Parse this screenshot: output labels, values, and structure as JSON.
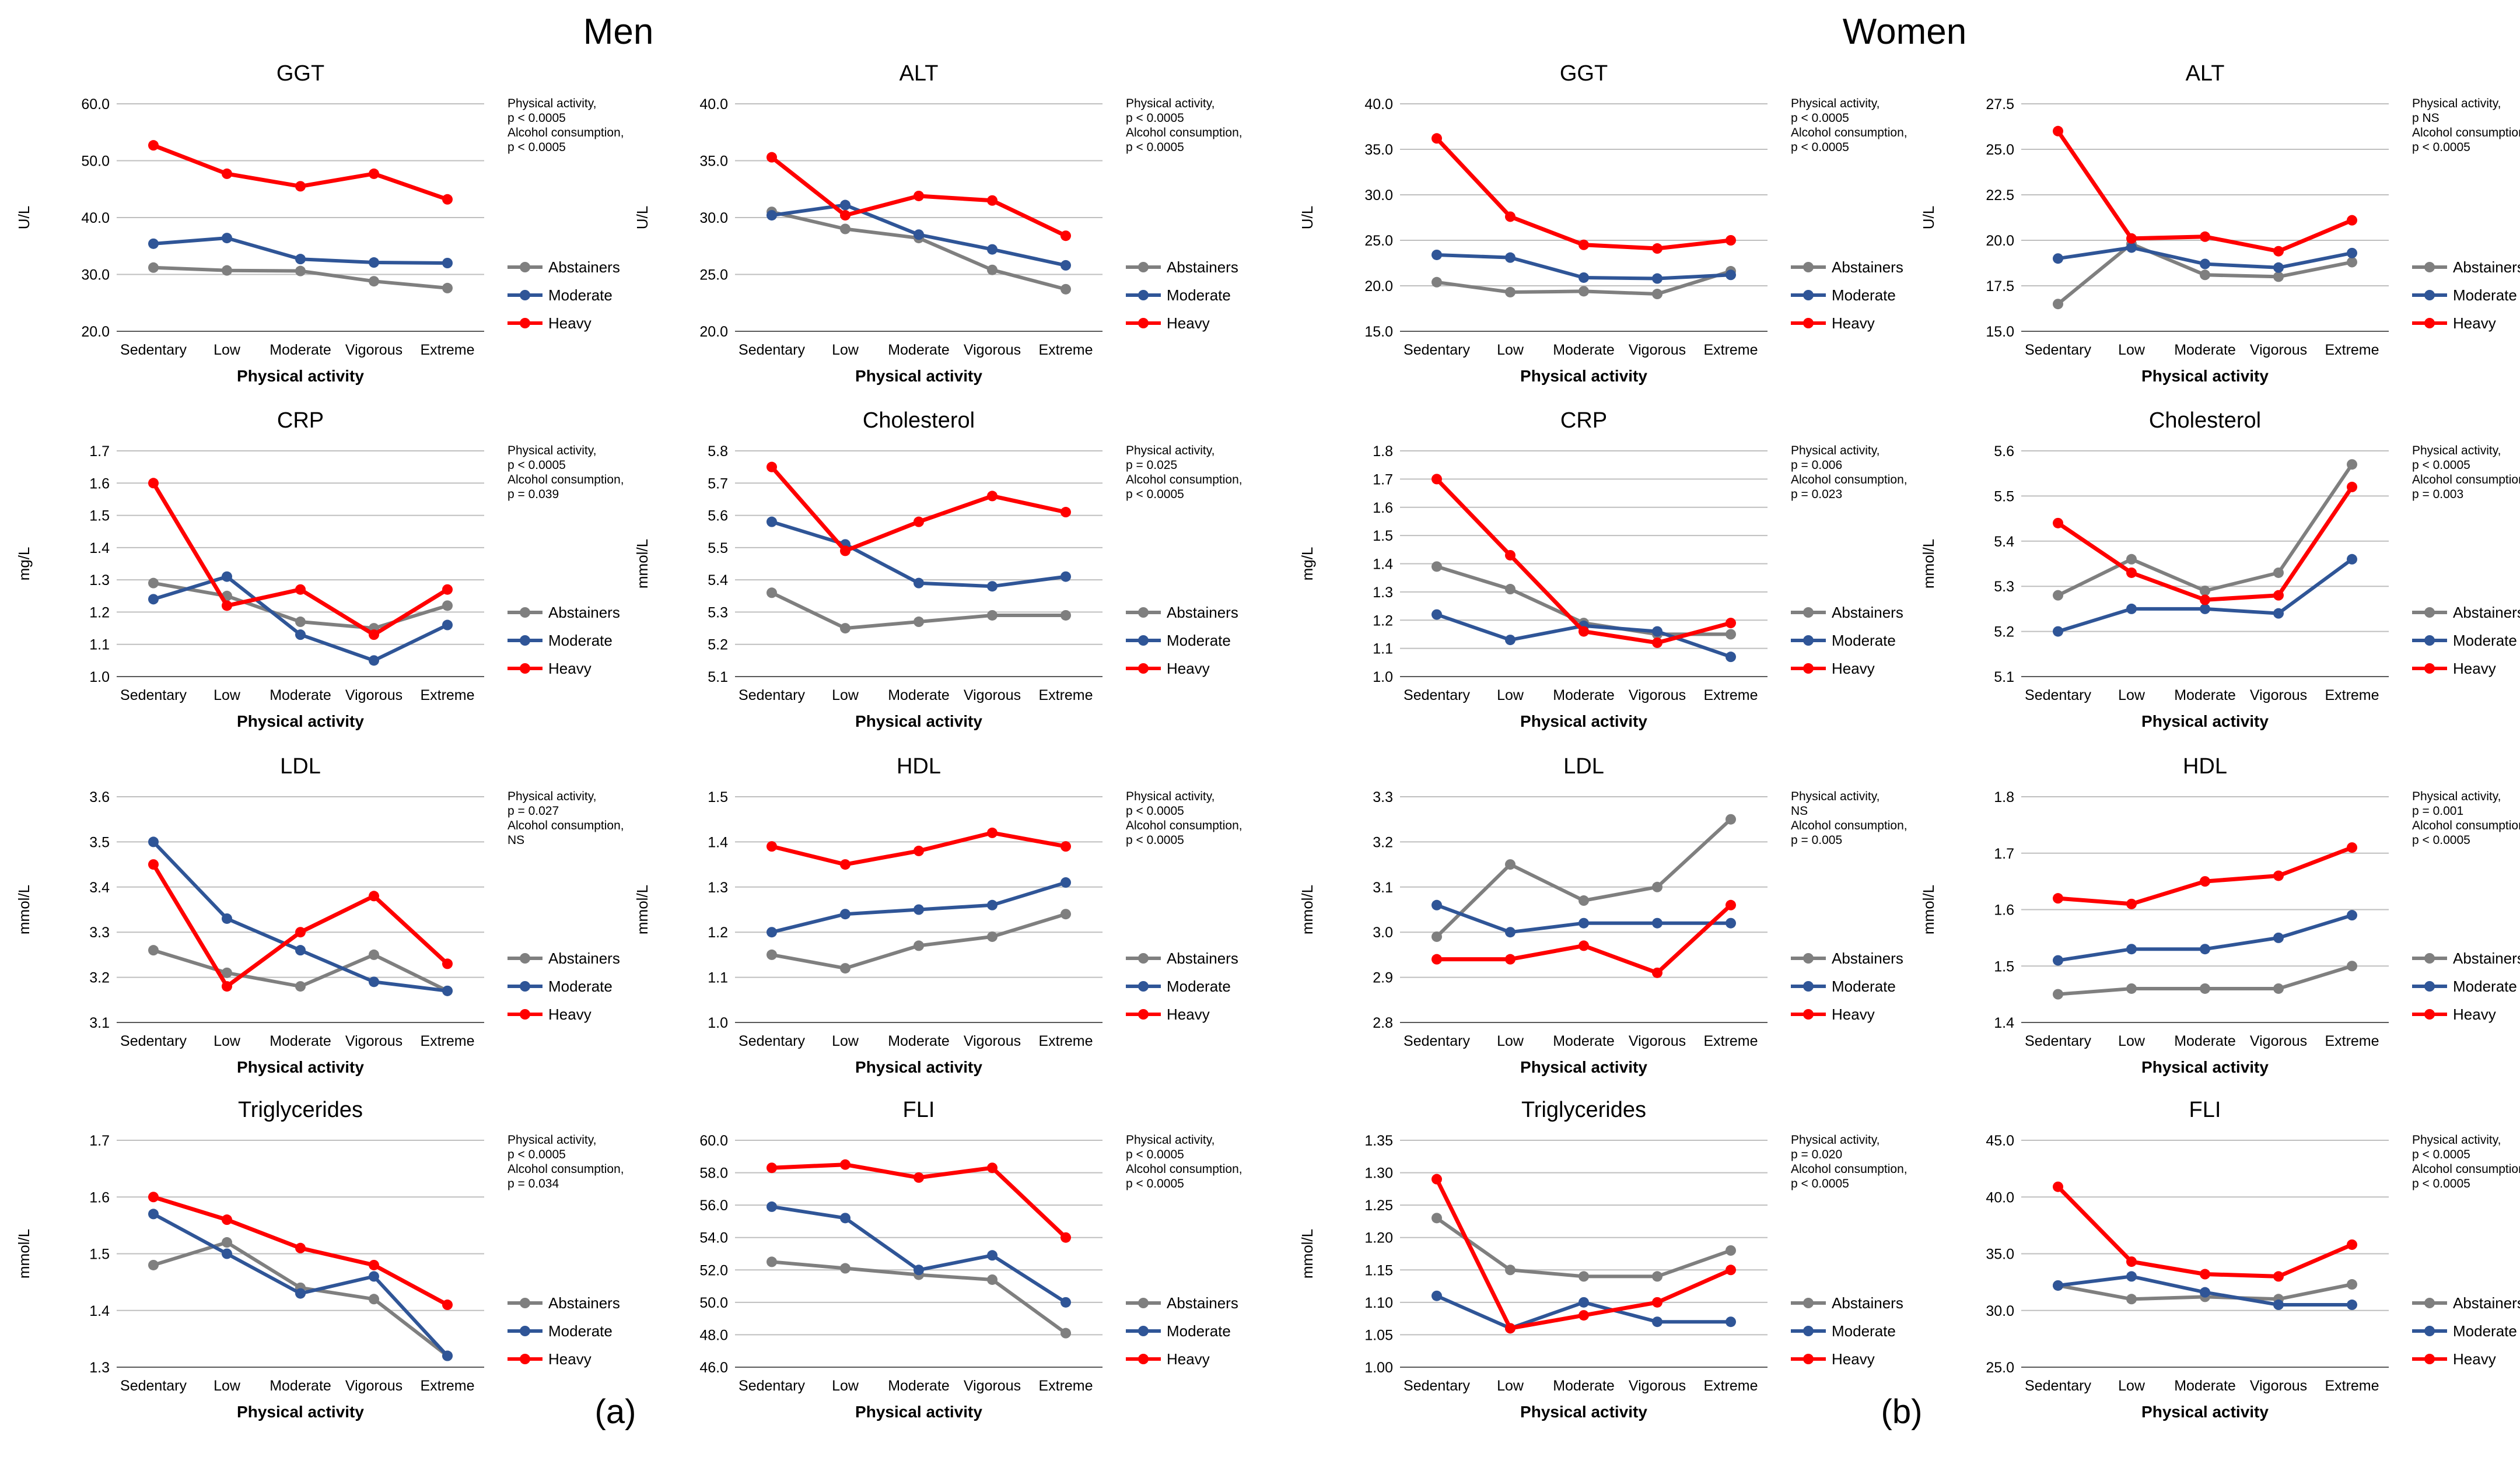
{
  "figure": {
    "men_title": "Men",
    "women_title": "Women",
    "label_a": "(a)",
    "label_b": "(b)"
  },
  "shared": {
    "categories": [
      "Sedentary",
      "Low",
      "Moderate",
      "Vigorous",
      "Extreme"
    ],
    "xlabel": "Physical activity",
    "legend": [
      "Abstainers",
      "Moderate",
      "Heavy"
    ],
    "colors": {
      "Abstainers": "#7f7f7f",
      "Moderate": "#2f5597",
      "Heavy": "#ff0000",
      "grid": "#bfbfbf",
      "axis": "#595959"
    }
  },
  "chart_data": [
    {
      "group": "Men",
      "type": "line",
      "title": "GGT",
      "ylabel": "U/L",
      "ylim": [
        20,
        60
      ],
      "yticks": [
        "20.0",
        "30.0",
        "40.0",
        "50.0",
        "60.0"
      ],
      "stats": [
        "Physical activity,",
        "p < 0.0005",
        "Alcohol consumption,",
        "p < 0.0005"
      ],
      "xlabel": "Physical activity",
      "categories": [
        "Sedentary",
        "Low",
        "Moderate",
        "Vigorous",
        "Extreme"
      ],
      "series": [
        {
          "name": "Abstainers",
          "values": [
            31.2,
            30.7,
            30.6,
            28.8,
            27.6
          ]
        },
        {
          "name": "Moderate",
          "values": [
            35.4,
            36.4,
            32.7,
            32.1,
            32.0
          ]
        },
        {
          "name": "Heavy",
          "values": [
            52.7,
            47.7,
            45.5,
            47.7,
            43.2
          ]
        }
      ]
    },
    {
      "group": "Men",
      "type": "line",
      "title": "ALT",
      "ylabel": "U/L",
      "ylim": [
        20,
        40
      ],
      "yticks": [
        "20.0",
        "25.0",
        "30.0",
        "35.0",
        "40.0"
      ],
      "stats": [
        "Physical activity,",
        "p < 0.0005",
        "Alcohol consumption,",
        "p < 0.0005"
      ],
      "xlabel": "Physical activity",
      "categories": [
        "Sedentary",
        "Low",
        "Moderate",
        "Vigorous",
        "Extreme"
      ],
      "series": [
        {
          "name": "Abstainers",
          "values": [
            30.5,
            29.0,
            28.2,
            25.4,
            23.7
          ]
        },
        {
          "name": "Moderate",
          "values": [
            30.2,
            31.1,
            28.5,
            27.2,
            25.8
          ]
        },
        {
          "name": "Heavy",
          "values": [
            35.3,
            30.2,
            31.9,
            31.5,
            28.4
          ]
        }
      ]
    },
    {
      "group": "Women",
      "type": "line",
      "title": "GGT",
      "ylabel": "U/L",
      "ylim": [
        15,
        40
      ],
      "yticks": [
        "15.0",
        "20.0",
        "25.0",
        "30.0",
        "35.0",
        "40.0"
      ],
      "stats": [
        "Physical activity,",
        "p < 0.0005",
        "Alcohol consumption,",
        "p < 0.0005"
      ],
      "xlabel": "Physical activity",
      "categories": [
        "Sedentary",
        "Low",
        "Moderate",
        "Vigorous",
        "Extreme"
      ],
      "series": [
        {
          "name": "Abstainers",
          "values": [
            20.4,
            19.3,
            19.4,
            19.1,
            21.6
          ]
        },
        {
          "name": "Moderate",
          "values": [
            23.4,
            23.1,
            20.9,
            20.8,
            21.2
          ]
        },
        {
          "name": "Heavy",
          "values": [
            36.2,
            27.6,
            24.5,
            24.1,
            25.0
          ]
        }
      ]
    },
    {
      "group": "Women",
      "type": "line",
      "title": "ALT",
      "ylabel": "U/L",
      "ylim": [
        15,
        27.5
      ],
      "yticks": [
        "15.0",
        "17.5",
        "20.0",
        "22.5",
        "25.0",
        "27.5"
      ],
      "stats": [
        "Physical activity,",
        "p NS",
        "Alcohol consumption,",
        "p < 0.0005"
      ],
      "xlabel": "Physical activity",
      "categories": [
        "Sedentary",
        "Low",
        "Moderate",
        "Vigorous",
        "Extreme"
      ],
      "series": [
        {
          "name": "Abstainers",
          "values": [
            16.5,
            19.8,
            18.1,
            18.0,
            18.8
          ]
        },
        {
          "name": "Moderate",
          "values": [
            19.0,
            19.6,
            18.7,
            18.5,
            19.3
          ]
        },
        {
          "name": "Heavy",
          "values": [
            26.0,
            20.1,
            20.2,
            19.4,
            21.1
          ]
        }
      ]
    },
    {
      "group": "Men",
      "type": "line",
      "title": "CRP",
      "ylabel": "mg/L",
      "ylim": [
        1.0,
        1.7
      ],
      "yticks": [
        "1.0",
        "1.1",
        "1.2",
        "1.3",
        "1.4",
        "1.5",
        "1.6",
        "1.7"
      ],
      "stats": [
        "Physical activity,",
        "p < 0.0005",
        "Alcohol consumption,",
        "p = 0.039"
      ],
      "xlabel": "Physical activity",
      "categories": [
        "Sedentary",
        "Low",
        "Moderate",
        "Vigorous",
        "Extreme"
      ],
      "series": [
        {
          "name": "Abstainers",
          "values": [
            1.29,
            1.25,
            1.17,
            1.15,
            1.22
          ]
        },
        {
          "name": "Moderate",
          "values": [
            1.24,
            1.31,
            1.13,
            1.05,
            1.16
          ]
        },
        {
          "name": "Heavy",
          "values": [
            1.6,
            1.22,
            1.27,
            1.13,
            1.27
          ]
        }
      ]
    },
    {
      "group": "Men",
      "type": "line",
      "title": "Cholesterol",
      "ylabel": "mmol/L",
      "ylim": [
        5.1,
        5.8
      ],
      "yticks": [
        "5.1",
        "5.2",
        "5.3",
        "5.4",
        "5.5",
        "5.6",
        "5.7",
        "5.8"
      ],
      "stats": [
        "Physical activity,",
        "p = 0.025",
        "Alcohol consumption,",
        "p < 0.0005"
      ],
      "xlabel": "Physical activity",
      "categories": [
        "Sedentary",
        "Low",
        "Moderate",
        "Vigorous",
        "Extreme"
      ],
      "series": [
        {
          "name": "Abstainers",
          "values": [
            5.36,
            5.25,
            5.27,
            5.29,
            5.29
          ]
        },
        {
          "name": "Moderate",
          "values": [
            5.58,
            5.51,
            5.39,
            5.38,
            5.41
          ]
        },
        {
          "name": "Heavy",
          "values": [
            5.75,
            5.49,
            5.58,
            5.66,
            5.61
          ]
        }
      ]
    },
    {
      "group": "Women",
      "type": "line",
      "title": "CRP",
      "ylabel": "mg/L",
      "ylim": [
        1.0,
        1.8
      ],
      "yticks": [
        "1.0",
        "1.1",
        "1.2",
        "1.3",
        "1.4",
        "1.5",
        "1.6",
        "1.7",
        "1.8"
      ],
      "stats": [
        "Physical activity,",
        "p = 0.006",
        "Alcohol consumption,",
        "p = 0.023"
      ],
      "xlabel": "Physical activity",
      "categories": [
        "Sedentary",
        "Low",
        "Moderate",
        "Vigorous",
        "Extreme"
      ],
      "series": [
        {
          "name": "Abstainers",
          "values": [
            1.39,
            1.31,
            1.19,
            1.15,
            1.15
          ]
        },
        {
          "name": "Moderate",
          "values": [
            1.22,
            1.13,
            1.18,
            1.16,
            1.07
          ]
        },
        {
          "name": "Heavy",
          "values": [
            1.7,
            1.43,
            1.16,
            1.12,
            1.19
          ]
        }
      ]
    },
    {
      "group": "Women",
      "type": "line",
      "title": "Cholesterol",
      "ylabel": "mmol/L",
      "ylim": [
        5.1,
        5.6
      ],
      "yticks": [
        "5.1",
        "5.2",
        "5.3",
        "5.4",
        "5.5",
        "5.6"
      ],
      "stats": [
        "Physical activity,",
        "p < 0.0005",
        "Alcohol consumption,",
        "p = 0.003"
      ],
      "xlabel": "Physical activity",
      "categories": [
        "Sedentary",
        "Low",
        "Moderate",
        "Vigorous",
        "Extreme"
      ],
      "series": [
        {
          "name": "Abstainers",
          "values": [
            5.28,
            5.36,
            5.29,
            5.33,
            5.57
          ]
        },
        {
          "name": "Moderate",
          "values": [
            5.2,
            5.25,
            5.25,
            5.24,
            5.36
          ]
        },
        {
          "name": "Heavy",
          "values": [
            5.44,
            5.33,
            5.27,
            5.28,
            5.52
          ]
        }
      ]
    },
    {
      "group": "Men",
      "type": "line",
      "title": "LDL",
      "ylabel": "mmol/L",
      "ylim": [
        3.1,
        3.6
      ],
      "yticks": [
        "3.1",
        "3.2",
        "3.3",
        "3.4",
        "3.5",
        "3.6"
      ],
      "stats": [
        "Physical activity,",
        "p = 0.027",
        "Alcohol consumption,",
        "NS"
      ],
      "xlabel": "Physical activity",
      "categories": [
        "Sedentary",
        "Low",
        "Moderate",
        "Vigorous",
        "Extreme"
      ],
      "series": [
        {
          "name": "Abstainers",
          "values": [
            3.26,
            3.21,
            3.18,
            3.25,
            3.17
          ]
        },
        {
          "name": "Moderate",
          "values": [
            3.5,
            3.33,
            3.26,
            3.19,
            3.17
          ]
        },
        {
          "name": "Heavy",
          "values": [
            3.45,
            3.18,
            3.3,
            3.38,
            3.23
          ]
        }
      ]
    },
    {
      "group": "Men",
      "type": "line",
      "title": "HDL",
      "ylabel": "mmol/L",
      "ylim": [
        1.0,
        1.5
      ],
      "yticks": [
        "1.0",
        "1.1",
        "1.2",
        "1.3",
        "1.4",
        "1.5"
      ],
      "stats": [
        "Physical activity,",
        "p < 0.0005",
        "Alcohol consumption,",
        "p < 0.0005"
      ],
      "xlabel": "Physical activity",
      "categories": [
        "Sedentary",
        "Low",
        "Moderate",
        "Vigorous",
        "Extreme"
      ],
      "series": [
        {
          "name": "Abstainers",
          "values": [
            1.15,
            1.12,
            1.17,
            1.19,
            1.24
          ]
        },
        {
          "name": "Moderate",
          "values": [
            1.2,
            1.24,
            1.25,
            1.26,
            1.31
          ]
        },
        {
          "name": "Heavy",
          "values": [
            1.39,
            1.35,
            1.38,
            1.42,
            1.39
          ]
        }
      ]
    },
    {
      "group": "Women",
      "type": "line",
      "title": "LDL",
      "ylabel": "mmol/L",
      "ylim": [
        2.8,
        3.3
      ],
      "yticks": [
        "2.8",
        "2.9",
        "3.0",
        "3.1",
        "3.2",
        "3.3"
      ],
      "stats": [
        "Physical activity,",
        "NS",
        "Alcohol consumption,",
        "p = 0.005"
      ],
      "xlabel": "Physical activity",
      "categories": [
        "Sedentary",
        "Low",
        "Moderate",
        "Vigorous",
        "Extreme"
      ],
      "series": [
        {
          "name": "Abstainers",
          "values": [
            2.99,
            3.15,
            3.07,
            3.1,
            3.25
          ]
        },
        {
          "name": "Moderate",
          "values": [
            3.06,
            3.0,
            3.02,
            3.02,
            3.02
          ]
        },
        {
          "name": "Heavy",
          "values": [
            2.94,
            2.94,
            2.97,
            2.91,
            3.06
          ]
        }
      ]
    },
    {
      "group": "Women",
      "type": "line",
      "title": "HDL",
      "ylabel": "mmol/L",
      "ylim": [
        1.4,
        1.8
      ],
      "yticks": [
        "1.4",
        "1.5",
        "1.6",
        "1.7",
        "1.8"
      ],
      "stats": [
        "Physical activity,",
        "p = 0.001",
        "Alcohol consumption,",
        "p < 0.0005"
      ],
      "xlabel": "Physical activity",
      "categories": [
        "Sedentary",
        "Low",
        "Moderate",
        "Vigorous",
        "Extreme"
      ],
      "series": [
        {
          "name": "Abstainers",
          "values": [
            1.45,
            1.46,
            1.46,
            1.46,
            1.5
          ]
        },
        {
          "name": "Moderate",
          "values": [
            1.51,
            1.53,
            1.53,
            1.55,
            1.59
          ]
        },
        {
          "name": "Heavy",
          "values": [
            1.62,
            1.61,
            1.65,
            1.66,
            1.71
          ]
        }
      ]
    },
    {
      "group": "Men",
      "type": "line",
      "title": "Triglycerides",
      "ylabel": "mmol/L",
      "ylim": [
        1.3,
        1.7
      ],
      "yticks": [
        "1.3",
        "1.4",
        "1.5",
        "1.6",
        "1.7"
      ],
      "stats": [
        "Physical activity,",
        "p < 0.0005",
        "Alcohol consumption,",
        "p = 0.034"
      ],
      "xlabel": "Physical activity",
      "categories": [
        "Sedentary",
        "Low",
        "Moderate",
        "Vigorous",
        "Extreme"
      ],
      "series": [
        {
          "name": "Abstainers",
          "values": [
            1.48,
            1.52,
            1.44,
            1.42,
            1.32
          ]
        },
        {
          "name": "Moderate",
          "values": [
            1.57,
            1.5,
            1.43,
            1.46,
            1.32
          ]
        },
        {
          "name": "Heavy",
          "values": [
            1.6,
            1.56,
            1.51,
            1.48,
            1.41
          ]
        }
      ]
    },
    {
      "group": "Men",
      "type": "line",
      "title": "FLI",
      "ylabel": "",
      "ylim": [
        46,
        60
      ],
      "yticks": [
        "46.0",
        "48.0",
        "50.0",
        "52.0",
        "54.0",
        "56.0",
        "58.0",
        "60.0"
      ],
      "stats": [
        "Physical activity,",
        "p < 0.0005",
        "Alcohol consumption,",
        "p < 0.0005"
      ],
      "xlabel": "Physical activity",
      "categories": [
        "Sedentary",
        "Low",
        "Moderate",
        "Vigorous",
        "Extreme"
      ],
      "series": [
        {
          "name": "Abstainers",
          "values": [
            52.5,
            52.1,
            51.7,
            51.4,
            48.1
          ]
        },
        {
          "name": "Moderate",
          "values": [
            55.9,
            55.2,
            52.0,
            52.9,
            50.0
          ]
        },
        {
          "name": "Heavy",
          "values": [
            58.3,
            58.5,
            57.7,
            58.3,
            54.0
          ]
        }
      ]
    },
    {
      "group": "Women",
      "type": "line",
      "title": "Triglycerides",
      "ylabel": "mmol/L",
      "ylim": [
        1.0,
        1.35
      ],
      "yticks": [
        "1.00",
        "1.05",
        "1.10",
        "1.15",
        "1.20",
        "1.25",
        "1.30",
        "1.35"
      ],
      "stats": [
        "Physical activity,",
        "p = 0.020",
        "Alcohol consumption,",
        "p < 0.0005"
      ],
      "xlabel": "Physical activity",
      "categories": [
        "Sedentary",
        "Low",
        "Moderate",
        "Vigorous",
        "Extreme"
      ],
      "series": [
        {
          "name": "Abstainers",
          "values": [
            1.23,
            1.15,
            1.14,
            1.14,
            1.18
          ]
        },
        {
          "name": "Moderate",
          "values": [
            1.11,
            1.06,
            1.1,
            1.07,
            1.07
          ]
        },
        {
          "name": "Heavy",
          "values": [
            1.29,
            1.06,
            1.08,
            1.1,
            1.15
          ]
        }
      ]
    },
    {
      "group": "Women",
      "type": "line",
      "title": "FLI",
      "ylabel": "",
      "ylim": [
        25,
        45
      ],
      "yticks": [
        "25.0",
        "30.0",
        "35.0",
        "40.0",
        "45.0"
      ],
      "stats": [
        "Physical activity,",
        "p < 0.0005",
        "Alcohol consumption,",
        "p < 0.0005"
      ],
      "xlabel": "Physical activity",
      "categories": [
        "Sedentary",
        "Low",
        "Moderate",
        "Vigorous",
        "Extreme"
      ],
      "series": [
        {
          "name": "Abstainers",
          "values": [
            32.2,
            31.0,
            31.2,
            31.0,
            32.3
          ]
        },
        {
          "name": "Moderate",
          "values": [
            32.2,
            33.0,
            31.6,
            30.5,
            30.5
          ]
        },
        {
          "name": "Heavy",
          "values": [
            40.9,
            34.3,
            33.2,
            33.0,
            35.8
          ]
        }
      ]
    }
  ]
}
